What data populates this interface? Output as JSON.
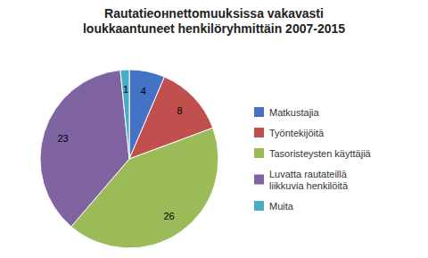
{
  "chart_data": {
    "type": "pie",
    "title": "Rautatieонnettomuuksissa vakavasti\nloukkaantuneet henkilöryhmittäin 2007-2015",
    "categories": [
      "Matkustajia",
      "Työntekijöitä",
      "Tasoristeysten käyttäjiä",
      "Luvatta rautateillä\nliikkuvia henkilöitä",
      "Muita"
    ],
    "values": [
      4,
      8,
      26,
      23,
      1
    ],
    "colors": [
      "#4472C4",
      "#C0504D",
      "#9BBB59",
      "#8064A2",
      "#4BACC6"
    ],
    "data_labels": true,
    "legend": "right"
  }
}
